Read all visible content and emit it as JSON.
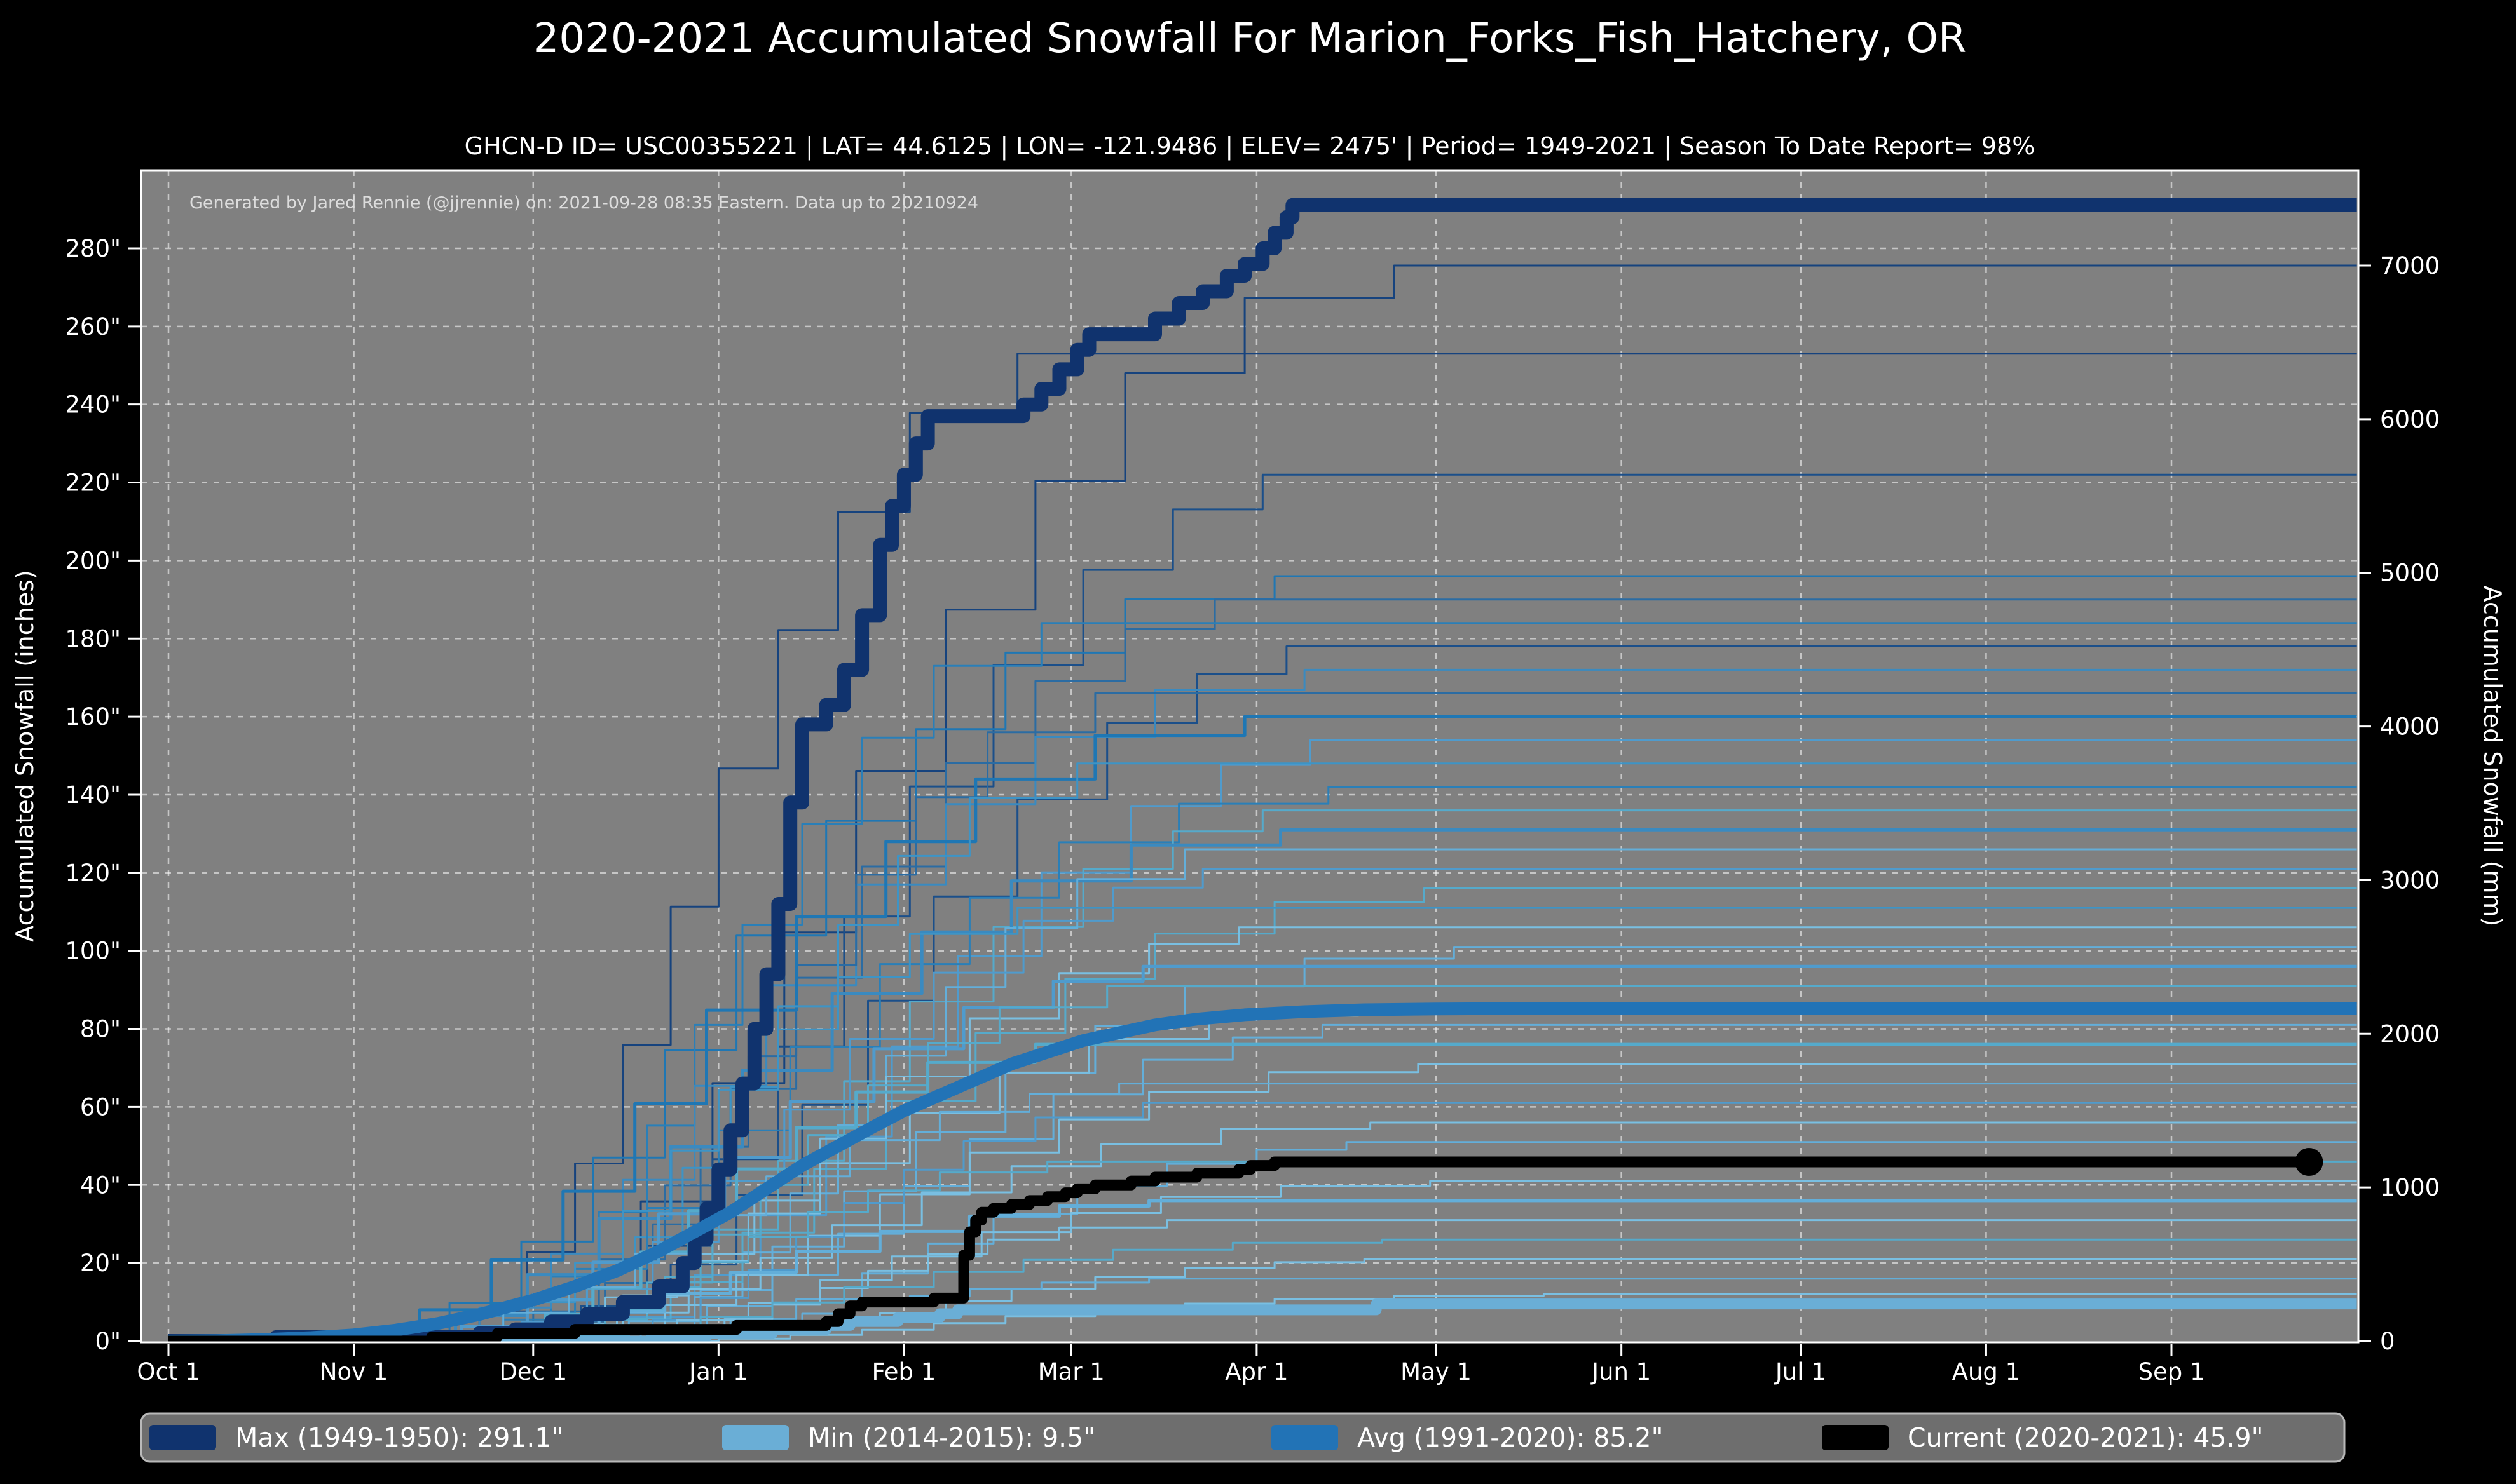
{
  "page": {
    "title": "2020-2021 Accumulated Snowfall For Marion_Forks_Fish_Hatchery, OR",
    "subtitle": "GHCN-D ID= USC00355221 | LAT= 44.6125 | LON= -121.9486 | ELEV= 2475' | Period= 1949-2021 | Season To Date Report= 98%",
    "annotation": "Generated by Jared Rennie (@jjrennie) on: 2021-09-28 08:35 Eastern. Data up to 20210924"
  },
  "axes": {
    "left_label": "Accumulated Snowfall (inches)",
    "right_label": "Accumulated Snowfall (mm)"
  },
  "legend": [
    {
      "id": "max",
      "label": "Max (1949-1950):  291.1\"",
      "color": "#10336e"
    },
    {
      "id": "min",
      "label": "Min (2014-2015):   9.5\"",
      "color": "#6aaed6"
    },
    {
      "id": "avg",
      "label": "Avg (1991-2020):  85.2\"",
      "color": "#2273b6"
    },
    {
      "id": "current",
      "label": "Current (2020-2021):  45.9\"",
      "color": "#000000"
    }
  ],
  "chart_data": {
    "type": "line",
    "title": "2020-2021 Accumulated Snowfall For Marion_Forks_Fish_Hatchery, OR",
    "plot_bg": "#808080",
    "page_bg": "#000000",
    "xlabel": "",
    "x_axis_note": "days since Oct 1; season runs Oct 1 - Sep 30",
    "x_ticks": [
      {
        "day": 0,
        "label": "Oct 1"
      },
      {
        "day": 31,
        "label": "Nov 1"
      },
      {
        "day": 61,
        "label": "Dec 1"
      },
      {
        "day": 92,
        "label": "Jan 1"
      },
      {
        "day": 123,
        "label": "Feb 1"
      },
      {
        "day": 151,
        "label": "Mar 1"
      },
      {
        "day": 182,
        "label": "Apr 1"
      },
      {
        "day": 212,
        "label": "May 1"
      },
      {
        "day": 243,
        "label": "Jun 1"
      },
      {
        "day": 273,
        "label": "Jul 1"
      },
      {
        "day": 304,
        "label": "Aug 1"
      },
      {
        "day": 335,
        "label": "Sep 1"
      }
    ],
    "y_left": {
      "label": "Accumulated Snowfall (inches)",
      "range": [
        0,
        300
      ],
      "ticks": [
        0,
        20,
        40,
        60,
        80,
        100,
        120,
        140,
        160,
        180,
        200,
        220,
        240,
        260,
        280
      ],
      "tick_suffix": "\""
    },
    "y_right": {
      "label": "Accumulated Snowfall (mm)",
      "range": [
        0,
        7620
      ],
      "ticks": [
        0,
        1000,
        2000,
        3000,
        4000,
        5000,
        6000,
        7000
      ]
    },
    "grid": "dashed white on gray, vertical at months, horizontal every 20 inches",
    "legend_position": "bottom, full-width gray rounded box",
    "series": [
      {
        "id": "max",
        "name": "Max (1949-1950)",
        "total_in": 291.1,
        "color": "#10336e",
        "width": 22,
        "style": "step",
        "points": [
          [
            0,
            0
          ],
          [
            17,
            0
          ],
          [
            18,
            1
          ],
          [
            46,
            1
          ],
          [
            52,
            2
          ],
          [
            58,
            3
          ],
          [
            64,
            5
          ],
          [
            70,
            7
          ],
          [
            76,
            10
          ],
          [
            82,
            14
          ],
          [
            86,
            20
          ],
          [
            88,
            26
          ],
          [
            90,
            34
          ],
          [
            92,
            44
          ],
          [
            94,
            54
          ],
          [
            96,
            66
          ],
          [
            98,
            80
          ],
          [
            100,
            94
          ],
          [
            102,
            112
          ],
          [
            104,
            138
          ],
          [
            106,
            158
          ],
          [
            110,
            163
          ],
          [
            113,
            172
          ],
          [
            116,
            186
          ],
          [
            119,
            204
          ],
          [
            121,
            214
          ],
          [
            123,
            222
          ],
          [
            125,
            230
          ],
          [
            127,
            237
          ],
          [
            140,
            237
          ],
          [
            143,
            240
          ],
          [
            146,
            244
          ],
          [
            149,
            249
          ],
          [
            152,
            254
          ],
          [
            154,
            258
          ],
          [
            161,
            258
          ],
          [
            165,
            262
          ],
          [
            169,
            266
          ],
          [
            173,
            269
          ],
          [
            177,
            273
          ],
          [
            180,
            276
          ],
          [
            183,
            280
          ],
          [
            185,
            284
          ],
          [
            187,
            288
          ],
          [
            188,
            291.1
          ],
          [
            366,
            291.1
          ]
        ]
      },
      {
        "id": "min",
        "name": "Min (2014-2015)",
        "total_in": 9.5,
        "color": "#6aaed6",
        "width": 17,
        "style": "step",
        "points": [
          [
            0,
            0
          ],
          [
            78,
            0
          ],
          [
            81,
            1
          ],
          [
            86,
            1
          ],
          [
            90,
            2
          ],
          [
            96,
            2
          ],
          [
            101,
            3
          ],
          [
            106,
            3
          ],
          [
            110,
            4
          ],
          [
            114,
            5
          ],
          [
            118,
            5
          ],
          [
            122,
            6
          ],
          [
            126,
            6
          ],
          [
            129,
            7
          ],
          [
            132,
            8
          ],
          [
            200,
            8
          ],
          [
            202,
            9.5
          ],
          [
            366,
            9.5
          ]
        ]
      },
      {
        "id": "avg",
        "name": "Avg (1991-2020)",
        "total_in": 85.2,
        "color": "#2273b6",
        "width": 20,
        "style": "linear",
        "points": [
          [
            0,
            0
          ],
          [
            8,
            0.1
          ],
          [
            16,
            0.4
          ],
          [
            24,
            0.9
          ],
          [
            31,
            1.6
          ],
          [
            38,
            2.8
          ],
          [
            45,
            4.5
          ],
          [
            52,
            6.8
          ],
          [
            61,
            10.5
          ],
          [
            68,
            14
          ],
          [
            75,
            18
          ],
          [
            82,
            23
          ],
          [
            88,
            28
          ],
          [
            94,
            33
          ],
          [
            100,
            39
          ],
          [
            106,
            45
          ],
          [
            112,
            50
          ],
          [
            118,
            55
          ],
          [
            123,
            59
          ],
          [
            129,
            63
          ],
          [
            135,
            67
          ],
          [
            141,
            71
          ],
          [
            147,
            74
          ],
          [
            153,
            77
          ],
          [
            159,
            79
          ],
          [
            165,
            81
          ],
          [
            172,
            82.5
          ],
          [
            180,
            83.6
          ],
          [
            190,
            84.4
          ],
          [
            200,
            84.9
          ],
          [
            212,
            85.1
          ],
          [
            225,
            85.2
          ],
          [
            366,
            85.2
          ]
        ]
      },
      {
        "id": "current",
        "name": "Current (2020-2021)",
        "total_in": 45.9,
        "color": "#000000",
        "width": 17,
        "style": "step",
        "end_marker": true,
        "points": [
          [
            0,
            0
          ],
          [
            40,
            0
          ],
          [
            44,
            1
          ],
          [
            50,
            1
          ],
          [
            55,
            2
          ],
          [
            62,
            2
          ],
          [
            68,
            3
          ],
          [
            75,
            3
          ],
          [
            88,
            3
          ],
          [
            95,
            4
          ],
          [
            105,
            4
          ],
          [
            110,
            5
          ],
          [
            112,
            7
          ],
          [
            114,
            9
          ],
          [
            116,
            10
          ],
          [
            123,
            10
          ],
          [
            128,
            11
          ],
          [
            131,
            11
          ],
          [
            133,
            22
          ],
          [
            134,
            28
          ],
          [
            135,
            31
          ],
          [
            136,
            33
          ],
          [
            138,
            34
          ],
          [
            141,
            35
          ],
          [
            144,
            36
          ],
          [
            147,
            37
          ],
          [
            150,
            38
          ],
          [
            152,
            39
          ],
          [
            155,
            40
          ],
          [
            158,
            40
          ],
          [
            161,
            41
          ],
          [
            165,
            42
          ],
          [
            169,
            42
          ],
          [
            172,
            43
          ],
          [
            176,
            43
          ],
          [
            179,
            44
          ],
          [
            181,
            45
          ],
          [
            183,
            45
          ],
          [
            185,
            45.9
          ],
          [
            358,
            45.9
          ]
        ]
      }
    ],
    "historical_profiles": {
      "A": {
        "offsets": [
          0,
          12,
          24,
          36,
          48,
          60,
          75,
          90,
          105,
          125,
          150
        ],
        "fractions": [
          0,
          0.05,
          0.13,
          0.24,
          0.38,
          0.53,
          0.68,
          0.8,
          0.9,
          0.97,
          1
        ]
      },
      "B": {
        "offsets": [
          0,
          10,
          18,
          26,
          34,
          42,
          50,
          60,
          70,
          82,
          100
        ],
        "fractions": [
          0,
          0.03,
          0.09,
          0.18,
          0.3,
          0.44,
          0.58,
          0.72,
          0.84,
          0.94,
          1
        ]
      },
      "C": {
        "offsets": [
          0,
          11,
          22,
          33,
          44,
          55,
          66,
          80,
          95,
          110,
          125
        ],
        "fractions": [
          0,
          0.04,
          0.11,
          0.21,
          0.34,
          0.49,
          0.64,
          0.78,
          0.89,
          0.96,
          1
        ]
      }
    },
    "historical_note": "approx. 70 thin unlabeled season traces 1949-2020; representative set below (season totals in inches, estimated from right-edge flat levels)",
    "historical": [
      {
        "total": 275.6,
        "start": 55,
        "profile": "A",
        "color": "#16437e",
        "w": 3
      },
      {
        "total": 253,
        "start": 42,
        "profile": "B",
        "color": "#16437e",
        "w": 3
      },
      {
        "total": 222,
        "start": 58,
        "profile": "C",
        "color": "#1b4f8a",
        "w": 3
      },
      {
        "total": 196,
        "start": 35,
        "profile": "A",
        "color": "#1f77b4",
        "w": 3
      },
      {
        "total": 190,
        "start": 50,
        "profile": "C",
        "color": "#2b6ca3",
        "w": 3
      },
      {
        "total": 184,
        "start": 46,
        "profile": "B",
        "color": "#2a7fb8",
        "w": 3
      },
      {
        "total": 178,
        "start": 62,
        "profile": "C",
        "color": "#1b4f8a",
        "w": 3
      },
      {
        "total": 172,
        "start": 40,
        "profile": "A",
        "color": "#3a8ac0",
        "w": 3
      },
      {
        "total": 166,
        "start": 55,
        "profile": "B",
        "color": "#2b6ca3",
        "w": 3
      },
      {
        "total": 160,
        "start": 30,
        "profile": "A",
        "color": "#1f77b4",
        "w": 5
      },
      {
        "total": 154,
        "start": 66,
        "profile": "C",
        "color": "#4f9bcd",
        "w": 3
      },
      {
        "total": 148,
        "start": 52,
        "profile": "B",
        "color": "#3d94c6",
        "w": 3
      },
      {
        "total": 142,
        "start": 44,
        "profile": "A",
        "color": "#2a7fb8",
        "w": 3
      },
      {
        "total": 136,
        "start": 58,
        "profile": "C",
        "color": "#55aacb",
        "w": 3
      },
      {
        "total": 131,
        "start": 36,
        "profile": "A",
        "color": "#3a8ac0",
        "w": 5
      },
      {
        "total": 126,
        "start": 70,
        "profile": "B",
        "color": "#63aed9",
        "w": 3
      },
      {
        "total": 121,
        "start": 48,
        "profile": "C",
        "color": "#4f9bcd",
        "w": 3
      },
      {
        "total": 116,
        "start": 60,
        "profile": "A",
        "color": "#55aacb",
        "w": 3
      },
      {
        "total": 111,
        "start": 42,
        "profile": "B",
        "color": "#3d94c6",
        "w": 3
      },
      {
        "total": 106,
        "start": 54,
        "profile": "C",
        "color": "#79bfe2",
        "w": 3
      },
      {
        "total": 101,
        "start": 65,
        "profile": "A",
        "color": "#63aed9",
        "w": 3
      },
      {
        "total": 96,
        "start": 38,
        "profile": "C",
        "color": "#4f9bcd",
        "w": 5
      },
      {
        "total": 91,
        "start": 57,
        "profile": "B",
        "color": "#55aacb",
        "w": 3
      },
      {
        "total": 86,
        "start": 49,
        "profile": "A",
        "color": "#79bfe2",
        "w": 3
      },
      {
        "total": 81,
        "start": 68,
        "profile": "C",
        "color": "#63aed9",
        "w": 3
      },
      {
        "total": 76,
        "start": 45,
        "profile": "B",
        "color": "#55aacb",
        "w": 5
      },
      {
        "total": 71,
        "start": 59,
        "profile": "A",
        "color": "#79bfe2",
        "w": 3
      },
      {
        "total": 66,
        "start": 34,
        "profile": "C",
        "color": "#63aed9",
        "w": 3
      },
      {
        "total": 61,
        "start": 63,
        "profile": "B",
        "color": "#4f9bcd",
        "w": 3
      },
      {
        "total": 56,
        "start": 51,
        "profile": "A",
        "color": "#79bfe2",
        "w": 3
      },
      {
        "total": 51,
        "start": 72,
        "profile": "C",
        "color": "#63aed9",
        "w": 3
      },
      {
        "total": 46,
        "start": 47,
        "profile": "B",
        "color": "#55aacb",
        "w": 3
      },
      {
        "total": 41,
        "start": 61,
        "profile": "A",
        "color": "#79bfe2",
        "w": 3
      },
      {
        "total": 36,
        "start": 39,
        "profile": "C",
        "color": "#63aed9",
        "w": 5
      },
      {
        "total": 31,
        "start": 67,
        "profile": "B",
        "color": "#79bfe2",
        "w": 3
      },
      {
        "total": 26,
        "start": 53,
        "profile": "A",
        "color": "#55aacb",
        "w": 3
      },
      {
        "total": 21,
        "start": 75,
        "profile": "C",
        "color": "#79bfe2",
        "w": 3
      },
      {
        "total": 16,
        "start": 64,
        "profile": "B",
        "color": "#63aed9",
        "w": 3
      },
      {
        "total": 12,
        "start": 80,
        "profile": "A",
        "color": "#79bfe2",
        "w": 3
      }
    ]
  }
}
